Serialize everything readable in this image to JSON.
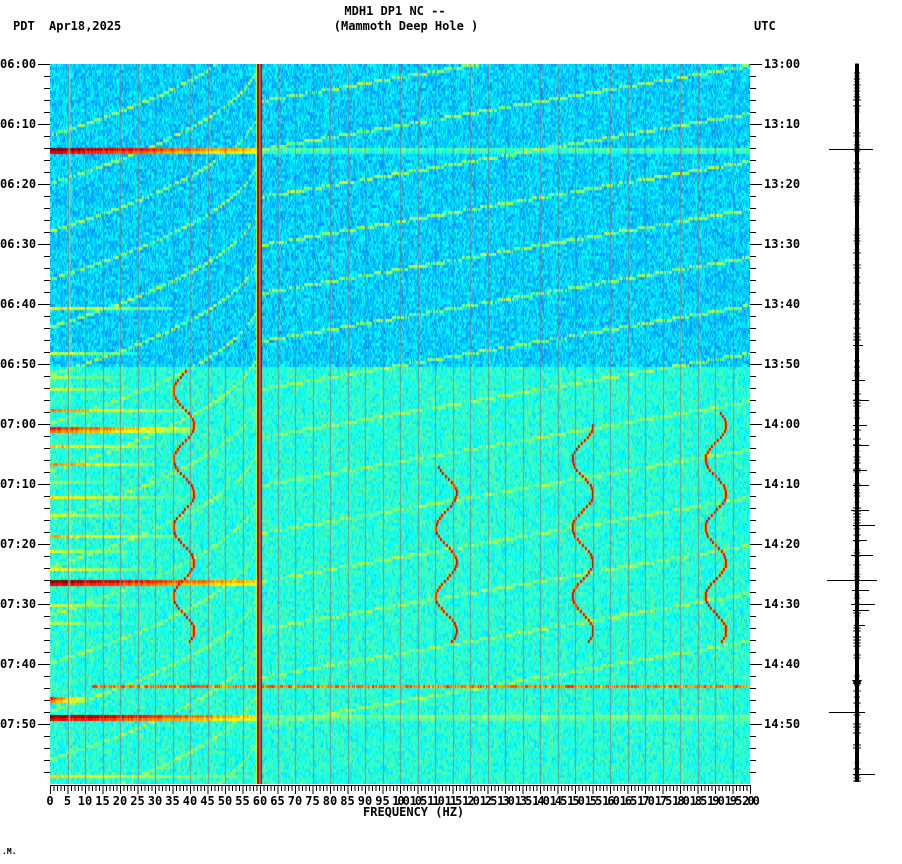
{
  "header": {
    "title_line1": "MDH1 DP1 NC --",
    "title_line2": "(Mammoth Deep Hole )",
    "timezone_left": "PDT",
    "date": "Apr18,2025",
    "timezone_right": "UTC"
  },
  "footer_mark": ".M.",
  "chart_data": {
    "type": "heatmap",
    "title": "MDH1 DP1 NC -- (Mammoth Deep Hole )",
    "subtitle": "Apr18,2025",
    "xlabel": "FREQUENCY (HZ)",
    "ylabel_left": "PDT",
    "ylabel_right": "UTC",
    "xlim": [
      0,
      200
    ],
    "x_ticks": [
      "0",
      "5",
      "10",
      "15",
      "20",
      "25",
      "30",
      "35",
      "40",
      "45",
      "50",
      "55",
      "60",
      "65",
      "70",
      "75",
      "80",
      "85",
      "90",
      "95",
      "100",
      "105",
      "110",
      "115",
      "120",
      "125",
      "130",
      "135",
      "140",
      "145",
      "150",
      "155",
      "160",
      "165",
      "170",
      "175",
      "180",
      "185",
      "190",
      "195",
      "200"
    ],
    "y_ticks_left": [
      "06:00",
      "06:10",
      "06:20",
      "06:30",
      "06:40",
      "06:50",
      "07:00",
      "07:10",
      "07:20",
      "07:30",
      "07:40",
      "07:50"
    ],
    "y_ticks_right": [
      "13:00",
      "13:10",
      "13:20",
      "13:30",
      "13:40",
      "13:50",
      "14:00",
      "14:10",
      "14:20",
      "14:30",
      "14:40",
      "14:50"
    ],
    "time_range_pdt": [
      "06:00",
      "08:00"
    ],
    "colormap": "jet",
    "grid": true,
    "persistent_lines_hz": [
      {
        "freq": 60,
        "level": 1.0
      },
      {
        "freq": 5.5,
        "level": 0.55
      },
      {
        "freq": 180,
        "level": 0.45
      }
    ],
    "gridline_every_hz": 5,
    "horizontal_events": [
      {
        "minute": 14.2,
        "fmax": 60,
        "level": 1.0,
        "extend_full": true,
        "full_level": 0.45
      },
      {
        "minute": 40.3,
        "fmax": 35,
        "level": 0.65
      },
      {
        "minute": 48.0,
        "fmax": 25,
        "level": 0.6
      },
      {
        "minute": 52.0,
        "fmax": 30,
        "level": 0.55
      },
      {
        "minute": 54.0,
        "fmax": 28,
        "level": 0.6
      },
      {
        "minute": 57.3,
        "fmax": 38,
        "level": 0.75
      },
      {
        "minute": 60.5,
        "fmax": 40,
        "level": 0.85
      },
      {
        "minute": 63.5,
        "fmax": 30,
        "level": 0.7
      },
      {
        "minute": 66.5,
        "fmax": 30,
        "level": 0.75
      },
      {
        "minute": 69.5,
        "fmax": 25,
        "level": 0.55
      },
      {
        "minute": 72.0,
        "fmax": 38,
        "level": 0.65
      },
      {
        "minute": 75.0,
        "fmax": 30,
        "level": 0.6
      },
      {
        "minute": 78.5,
        "fmax": 38,
        "level": 0.7
      },
      {
        "minute": 81.0,
        "fmax": 30,
        "level": 0.6
      },
      {
        "minute": 84.0,
        "fmax": 30,
        "level": 0.65
      },
      {
        "minute": 86.2,
        "fmax": 60,
        "level": 1.0
      },
      {
        "minute": 90.0,
        "fmax": 30,
        "level": 0.6
      },
      {
        "minute": 93.0,
        "fmax": 30,
        "level": 0.55
      },
      {
        "minute": 103.5,
        "fmax": 200,
        "fstart": 12,
        "level": 0.75
      },
      {
        "minute": 105.5,
        "fmax": 10,
        "level": 0.85
      },
      {
        "minute": 108.5,
        "fmax": 60,
        "level": 1.0,
        "extend_full": true,
        "full_level": 0.5
      },
      {
        "minute": 118.3,
        "fmax": 60,
        "level": 0.65
      }
    ],
    "arc_sweeps": {
      "count": 16,
      "start_minute": -10,
      "spacing_minutes": 8,
      "level": 0.45
    },
    "wiggle_tracks": [
      {
        "freq": 38,
        "minute_start": 51,
        "minute_end": 96
      },
      {
        "freq": 113,
        "minute_start": 67,
        "minute_end": 96
      },
      {
        "freq": 152,
        "minute_start": 60,
        "minute_end": 96
      },
      {
        "freq": 190,
        "minute_start": 58,
        "minute_end": 96
      }
    ]
  },
  "trace_panel": {
    "description": "seismogram trace",
    "x": 857
  }
}
